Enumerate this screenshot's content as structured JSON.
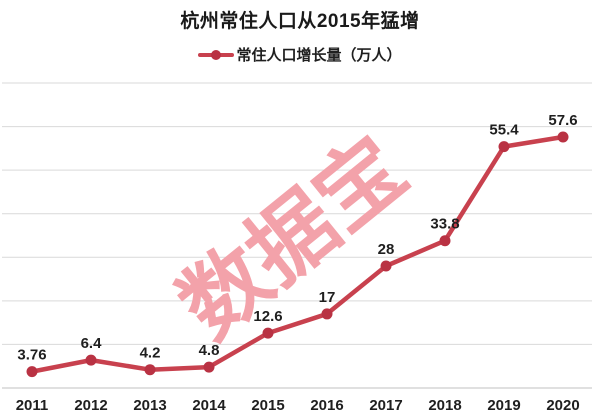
{
  "page": {
    "background": "#ffffff"
  },
  "chart_data": {
    "type": "line",
    "title": "杭州常住人口从2015年猛增",
    "legend": "常住人口增长量（万人）",
    "categories": [
      "2011",
      "2012",
      "2013",
      "2014",
      "2015",
      "2016",
      "2017",
      "2018",
      "2019",
      "2020"
    ],
    "series": [
      {
        "name": "常住人口增长量（万人）",
        "values": [
          3.76,
          6.4,
          4.2,
          4.8,
          12.6,
          17,
          28,
          33.8,
          55.4,
          57.6
        ]
      }
    ],
    "point_labels": [
      "3.76",
      "6.4",
      "4.2",
      "4.8",
      "12.6",
      "17",
      "28",
      "33.8",
      "55.4",
      "57.6"
    ],
    "xlabel": "",
    "ylabel": "",
    "ylim": [
      0,
      70
    ],
    "grid_step": 10,
    "grid": "horizontal-only",
    "y_axis_labels_visible": false,
    "legend_position": "top-center",
    "colors": {
      "line": "#C8414E",
      "marker": "#B93243",
      "grid": "#D9D9D9",
      "axis": "#C2C2C2",
      "text": "#1f1f1f"
    }
  },
  "watermark": {
    "text": "数据宝",
    "color": "#F3A2AA"
  }
}
